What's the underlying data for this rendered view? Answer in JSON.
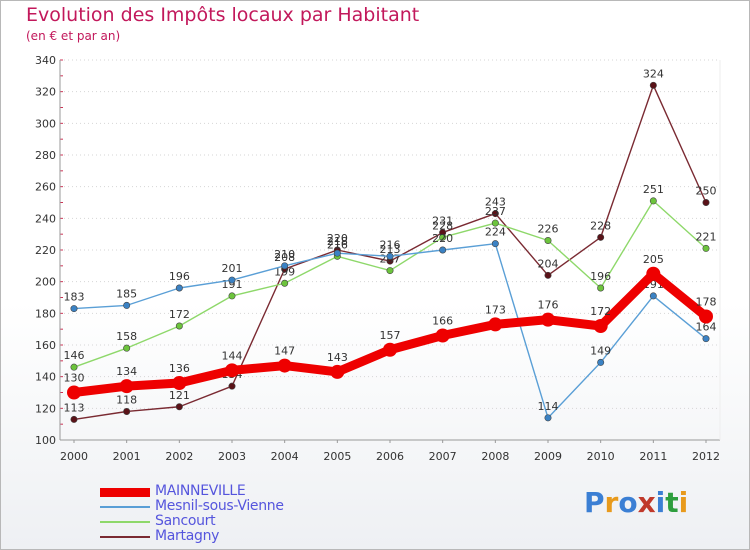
{
  "title": "Evolution des Impôts locaux par Habitant",
  "subtitle": "(en € et par an)",
  "logo": {
    "text": "Proxiti",
    "letter_colors": [
      "#3b7fd4",
      "#e89a1c",
      "#3b7fd4",
      "#c0392b",
      "#3b7fd4",
      "#2e9e3e",
      "#e89a1c"
    ]
  },
  "chart_data": {
    "type": "line",
    "title": "Evolution des Impôts locaux par Habitant",
    "subtitle": "(en € et par an)",
    "xlabel": "",
    "ylabel": "",
    "x": [
      "2000",
      "2001",
      "2002",
      "2003",
      "2004",
      "2005",
      "2006",
      "2007",
      "2008",
      "2009",
      "2010",
      "2011",
      "2012"
    ],
    "ylim": [
      100,
      340
    ],
    "yticks": [
      "100",
      "120",
      "140",
      "160",
      "180",
      "200",
      "220",
      "240",
      "260",
      "280",
      "300",
      "320",
      "340"
    ],
    "grid": "horizontal dotted",
    "legend_position": "bottom-left",
    "series": [
      {
        "name": "Martagny",
        "color": "#7a2a32",
        "marker": "#5a1218",
        "values": [
          113,
          118,
          121,
          134,
          208,
          220,
          213,
          231,
          243,
          204,
          228,
          324,
          250
        ],
        "labels": [
          "113",
          "118",
          "121",
          "134",
          "208",
          "220",
          "213",
          "231",
          "243",
          "204",
          "228",
          "324",
          "250"
        ]
      },
      {
        "name": "Sancourt",
        "color": "#8ed86a",
        "marker": "#6cc43c",
        "values": [
          146,
          158,
          172,
          191,
          199,
          216,
          207,
          228,
          237,
          226,
          196,
          251,
          221
        ],
        "labels": [
          "146",
          "158",
          "172",
          "191",
          "199",
          "216",
          "207",
          "228",
          "237",
          "226",
          "196",
          "251",
          "221"
        ]
      },
      {
        "name": "Mesnil-sous-Vienne",
        "color": "#5a9fd6",
        "marker": "#3b82c4",
        "values": [
          183,
          185,
          196,
          201,
          210,
          218,
          216,
          220,
          224,
          114,
          149,
          191,
          164
        ],
        "labels": [
          "183",
          "185",
          "196",
          "201",
          "210",
          "218",
          "216",
          "220",
          "224",
          "114",
          "149",
          "191",
          "164"
        ]
      },
      {
        "name": "MAINNEVILLE",
        "color": "#ee0000",
        "marker": "#ee0000",
        "values": [
          130,
          134,
          136,
          144,
          147,
          143,
          157,
          166,
          173,
          176,
          172,
          205,
          178
        ],
        "labels": [
          "130",
          "134",
          "136",
          "144",
          "147",
          "143",
          "157",
          "166",
          "173",
          "176",
          "172",
          "205",
          "178"
        ]
      }
    ]
  },
  "legend": [
    {
      "name": "MAINNEVILLE",
      "color": "#ee0000",
      "weight": "thick"
    },
    {
      "name": "Mesnil-sous-Vienne",
      "color": "#5a9fd6",
      "weight": "thin"
    },
    {
      "name": "Sancourt",
      "color": "#8ed86a",
      "weight": "thin"
    },
    {
      "name": "Martagny",
      "color": "#7a2a32",
      "weight": "thin"
    }
  ]
}
